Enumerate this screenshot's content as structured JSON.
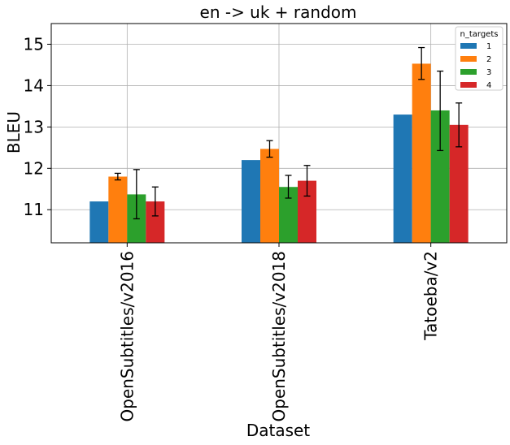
{
  "chart_data": {
    "type": "bar",
    "title": "en -> uk + random",
    "xlabel": "Dataset",
    "ylabel": "BLEU",
    "categories": [
      "OpenSubtitles/v2016",
      "OpenSubtitles/v2018",
      "Tatoeba/v2"
    ],
    "ylim": [
      10.2,
      15.5
    ],
    "yticks": [
      "11",
      "12",
      "13",
      "14",
      "15"
    ],
    "grid": true,
    "legend": {
      "title": "n_targets",
      "placement": "top-right"
    },
    "series": [
      {
        "name": "1",
        "color": "#1f77b4",
        "values": [
          11.2,
          12.2,
          13.3
        ],
        "errors": [
          null,
          null,
          null
        ]
      },
      {
        "name": "2",
        "color": "#ff7f0e",
        "values": [
          11.8,
          12.47,
          14.53
        ],
        "errors": [
          [
            11.72,
            11.88
          ],
          [
            12.27,
            12.67
          ],
          [
            14.15,
            14.92
          ]
        ]
      },
      {
        "name": "3",
        "color": "#2ca02c",
        "values": [
          11.37,
          11.55,
          13.4
        ],
        "errors": [
          [
            10.78,
            11.97
          ],
          [
            11.28,
            11.83
          ],
          [
            12.43,
            14.35
          ]
        ]
      },
      {
        "name": "4",
        "color": "#d62728",
        "values": [
          11.2,
          11.7,
          13.05
        ],
        "errors": [
          [
            10.85,
            11.55
          ],
          [
            11.33,
            12.07
          ],
          [
            12.52,
            13.58
          ]
        ]
      }
    ]
  }
}
